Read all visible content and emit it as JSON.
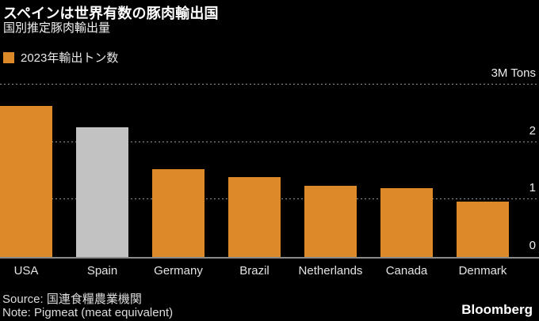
{
  "header": {
    "title": "スペインは世界有数の豚肉輸出国",
    "subtitle": "国別推定豚肉輸出量"
  },
  "legend": {
    "label": "2023年輸出トン数"
  },
  "chart_data": {
    "type": "bar",
    "title": "スペインは世界有数の豚肉輸出国",
    "subtitle": "国別推定豚肉輸出量",
    "legend": [
      "2023年輸出トン数"
    ],
    "categories": [
      "USA",
      "Spain",
      "Germany",
      "Brazil",
      "Netherlands",
      "Canada",
      "Denmark"
    ],
    "values": [
      2.63,
      2.26,
      1.53,
      1.39,
      1.24,
      1.2,
      0.97
    ],
    "unit": "M Tons",
    "ylabel": "",
    "xlabel": "",
    "ylim": [
      0,
      3
    ],
    "y_ticks": [
      {
        "value": 3,
        "label": "3M Tons"
      },
      {
        "value": 2,
        "label": "2"
      },
      {
        "value": 1,
        "label": "1"
      },
      {
        "value": 0,
        "label": "0"
      }
    ],
    "grid": "horizontal-dotted",
    "axis_side": "right",
    "legend_position": "top-left",
    "bar_color": "#DC8A29",
    "highlight_category": "Spain",
    "highlight_color": "#C2C2C2",
    "background_color": "#000000"
  },
  "footer": {
    "source": "Source: 国連食糧農業機関",
    "note": "Note: Pigmeat (meat equivalent)",
    "logo": "Bloomberg"
  }
}
